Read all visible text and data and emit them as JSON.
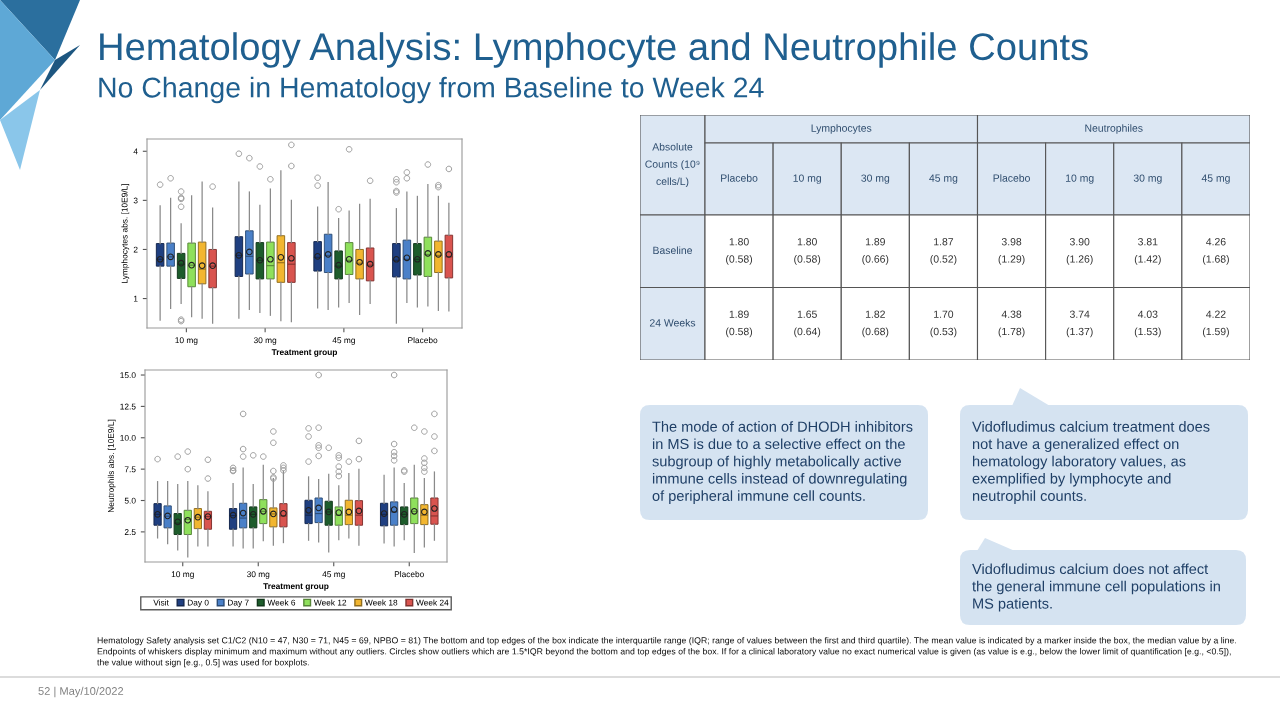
{
  "chart_data": [
    {
      "type": "box",
      "categories": [
        "10 mg",
        "30 mg",
        "45 mg",
        "Placebo"
      ],
      "xlabel": "Treatment group",
      "ylabel": "Lymphocytes abs. [10E9/L]",
      "ylim": [
        0.4,
        4.25
      ],
      "yticks": [
        1,
        2,
        3,
        4
      ],
      "grid": false,
      "legend": false,
      "series": [
        {
          "color": "#1f3f80",
          "boxes": [
            {
              "low": 0.56,
              "q1": 1.66,
              "median": 1.8,
              "q3": 2.12,
              "high": 2.89,
              "mean": 1.8,
              "outliers": [
                3.32
              ]
            },
            {
              "low": 0.6,
              "q1": 1.45,
              "median": 1.88,
              "q3": 2.26,
              "high": 3.37,
              "mean": 1.88,
              "outliers": [
                3.95
              ]
            },
            {
              "low": 0.81,
              "q1": 1.56,
              "median": 1.84,
              "q3": 2.16,
              "high": 2.86,
              "mean": 1.86,
              "outliers": [
                3.46,
                3.3
              ]
            },
            {
              "low": 0.5,
              "q1": 1.44,
              "median": 1.78,
              "q3": 2.12,
              "high": 2.83,
              "mean": 1.8,
              "outliers": [
                3.43,
                3.37,
                3.19,
                3.16
              ]
            }
          ]
        },
        {
          "color": "#4a80c8",
          "boxes": [
            {
              "low": 0.8,
              "q1": 1.66,
              "median": 1.85,
              "q3": 2.13,
              "high": 3.04,
              "mean": 1.85,
              "outliers": [
                3.45
              ]
            },
            {
              "low": 0.78,
              "q1": 1.5,
              "median": 1.86,
              "q3": 2.38,
              "high": 3.17,
              "mean": 1.95,
              "outliers": [
                3.86
              ]
            },
            {
              "low": 0.78,
              "q1": 1.53,
              "median": 1.88,
              "q3": 2.31,
              "high": 3.36,
              "mean": 1.9
            },
            {
              "low": 0.92,
              "q1": 1.4,
              "median": 1.8,
              "q3": 2.19,
              "high": 3.17,
              "mean": 1.83,
              "outliers": [
                3.57,
                3.45
              ]
            }
          ]
        },
        {
          "color": "#1d5c2b",
          "boxes": [
            {
              "low": 0.9,
              "q1": 1.41,
              "median": 1.7,
              "q3": 1.92,
              "high": 2.52,
              "mean": 1.72,
              "outliers": [
                3.18,
                3.05,
                3.03,
                2.87,
                0.57,
                0.54
              ]
            },
            {
              "low": 0.72,
              "q1": 1.4,
              "median": 1.78,
              "q3": 2.14,
              "high": 2.9,
              "mean": 1.78,
              "outliers": [
                3.69
              ]
            },
            {
              "low": 0.83,
              "q1": 1.4,
              "median": 1.66,
              "q3": 1.97,
              "high": 2.63,
              "mean": 1.68,
              "outliers": [
                2.82
              ]
            },
            {
              "low": 0.83,
              "q1": 1.48,
              "median": 1.8,
              "q3": 2.12,
              "high": 3.08,
              "mean": 1.8
            }
          ]
        },
        {
          "color": "#8fe05c",
          "boxes": [
            {
              "low": 0.63,
              "q1": 1.24,
              "median": 1.68,
              "q3": 2.13,
              "high": 3.09,
              "mean": 1.68
            },
            {
              "low": 0.66,
              "q1": 1.4,
              "median": 1.67,
              "q3": 2.15,
              "high": 3.23,
              "mean": 1.8,
              "outliers": [
                3.43
              ]
            },
            {
              "low": 0.92,
              "q1": 1.49,
              "median": 1.78,
              "q3": 2.14,
              "high": 2.78,
              "mean": 1.8,
              "outliers": [
                4.04
              ]
            },
            {
              "low": 0.85,
              "q1": 1.45,
              "median": 1.9,
              "q3": 2.25,
              "high": 3.32,
              "mean": 1.92,
              "outliers": [
                3.73
              ]
            }
          ]
        },
        {
          "color": "#f2b630",
          "boxes": [
            {
              "low": 0.6,
              "q1": 1.3,
              "median": 1.6,
              "q3": 2.15,
              "high": 3.37,
              "mean": 1.67
            },
            {
              "low": 0.55,
              "q1": 1.33,
              "median": 1.73,
              "q3": 2.28,
              "high": 3.6,
              "mean": 1.84
            },
            {
              "low": 0.68,
              "q1": 1.4,
              "median": 1.72,
              "q3": 2.0,
              "high": 2.92,
              "mean": 1.74
            },
            {
              "low": 0.76,
              "q1": 1.53,
              "median": 1.88,
              "q3": 2.17,
              "high": 3.08,
              "mean": 1.9,
              "outliers": [
                3.31,
                3.27
              ]
            }
          ]
        },
        {
          "color": "#d9544f",
          "boxes": [
            {
              "low": 0.5,
              "q1": 1.22,
              "median": 1.66,
              "q3": 2.0,
              "high": 2.84,
              "mean": 1.67,
              "outliers": [
                3.28
              ]
            },
            {
              "low": 0.53,
              "q1": 1.33,
              "median": 1.7,
              "q3": 2.14,
              "high": 3.0,
              "mean": 1.82,
              "outliers": [
                4.13,
                3.7
              ]
            },
            {
              "low": 0.9,
              "q1": 1.36,
              "median": 1.68,
              "q3": 2.03,
              "high": 3.02,
              "mean": 1.7,
              "outliers": [
                3.4
              ]
            },
            {
              "low": 0.75,
              "q1": 1.42,
              "median": 1.85,
              "q3": 2.29,
              "high": 2.94,
              "mean": 1.9,
              "outliers": [
                3.64
              ]
            }
          ]
        }
      ]
    },
    {
      "type": "box",
      "categories": [
        "10 mg",
        "30 mg",
        "45 mg",
        "Placebo"
      ],
      "xlabel": "Treatment group",
      "ylabel": "Neutrophils abs. [10E9/L]",
      "ylim": [
        0.1,
        15.4
      ],
      "yticks": [
        {
          "value": 2.5,
          "label": "2.5"
        },
        {
          "value": 5,
          "label": "5.0"
        },
        {
          "value": 7.5,
          "label": "7.5"
        },
        {
          "value": 10,
          "label": "10.0"
        },
        {
          "value": 12.5,
          "label": "12.5"
        },
        {
          "value": 15,
          "label": "15.0"
        }
      ],
      "grid": false,
      "legend": "bottom",
      "legend_title": "Visit",
      "series": [
        {
          "name": "Day 0",
          "color": "#1f3f80",
          "boxes": [
            {
              "low": 2.02,
              "q1": 3.03,
              "median": 3.9,
              "q3": 4.75,
              "high": 6.5,
              "mean": 3.9,
              "outliers": [
                8.3
              ]
            },
            {
              "low": 1.39,
              "q1": 2.71,
              "median": 3.8,
              "q3": 4.36,
              "high": 6.35,
              "mean": 3.83,
              "outliers": [
                7.6,
                7.4,
                7.35
              ]
            },
            {
              "low": 1.84,
              "q1": 3.16,
              "median": 3.83,
              "q3": 5.02,
              "high": 6.88,
              "mean": 4.22,
              "outliers": [
                10.75,
                10.1,
                8.1
              ]
            },
            {
              "low": 1.62,
              "q1": 2.98,
              "median": 3.9,
              "q3": 4.78,
              "high": 7.01,
              "mean": 3.96
            }
          ]
        },
        {
          "name": "Day 7",
          "color": "#4a80c8",
          "boxes": [
            {
              "low": 1.57,
              "q1": 2.82,
              "median": 3.75,
              "q3": 4.57,
              "high": 6.5,
              "mean": 3.77
            },
            {
              "low": 1.23,
              "q1": 2.82,
              "median": 3.6,
              "q3": 4.78,
              "high": 7.59,
              "mean": 4.0,
              "outliers": [
                11.9,
                9.1,
                8.5
              ]
            },
            {
              "low": 1.7,
              "q1": 3.24,
              "median": 3.96,
              "q3": 5.2,
              "high": 6.66,
              "mean": 4.41,
              "outliers": [
                15.0,
                10.8,
                9.4,
                9.2,
                8.55
              ]
            },
            {
              "low": 1.39,
              "q1": 3.03,
              "median": 4.09,
              "q3": 4.89,
              "high": 7.59,
              "mean": 4.28,
              "outliers": [
                15.0,
                9.5,
                8.85,
                8.55,
                8.2
              ]
            }
          ]
        },
        {
          "name": "Week 6",
          "color": "#1d5c2b",
          "boxes": [
            {
              "low": 1.07,
              "q1": 2.29,
              "median": 3.2,
              "q3": 3.96,
              "high": 6.27,
              "mean": 3.3,
              "outliers": [
                8.5
              ]
            },
            {
              "low": 1.23,
              "q1": 2.82,
              "median": 3.9,
              "q3": 4.49,
              "high": 6.27,
              "mean": 3.9,
              "outliers": [
                8.6
              ]
            },
            {
              "low": 0.91,
              "q1": 3.03,
              "median": 4.09,
              "q3": 4.94,
              "high": 7.09,
              "mean": 4.09,
              "outliers": [
                9.2
              ]
            },
            {
              "low": 1.89,
              "q1": 3.08,
              "median": 3.9,
              "q3": 4.49,
              "high": 6.35,
              "mean": 3.9,
              "outliers": [
                7.4,
                7.3
              ]
            }
          ]
        },
        {
          "name": "Week 12",
          "color": "#8fe05c",
          "boxes": [
            {
              "low": 0.5,
              "q1": 2.29,
              "median": 3.5,
              "q3": 4.22,
              "high": 6.5,
              "mean": 3.43,
              "outliers": [
                8.9,
                7.5
              ]
            },
            {
              "low": 1.81,
              "q1": 3.16,
              "median": 4.14,
              "q3": 5.07,
              "high": 7.8,
              "mean": 4.14,
              "outliers": [
                8.5
              ]
            },
            {
              "low": 1.89,
              "q1": 3.03,
              "median": 3.83,
              "q3": 4.49,
              "high": 6.16,
              "mean": 4.04,
              "outliers": [
                8.6,
                8.4,
                7.7,
                7.3,
                6.95
              ]
            },
            {
              "low": 0.86,
              "q1": 3.16,
              "median": 4.14,
              "q3": 5.2,
              "high": 7.8,
              "mean": 4.14,
              "outliers": [
                10.8
              ]
            }
          ]
        },
        {
          "name": "Week 18",
          "color": "#f2b630",
          "boxes": [
            {
              "low": 1.39,
              "q1": 2.76,
              "median": 3.67,
              "q3": 4.36,
              "high": 6.16,
              "mean": 3.67
            },
            {
              "low": 1.44,
              "q1": 2.9,
              "median": 3.93,
              "q3": 4.41,
              "high": 6.74,
              "mean": 3.93,
              "outliers": [
                10.5,
                9.6,
                7.35,
                6.85,
                6.75
              ]
            },
            {
              "low": 2.02,
              "q1": 3.08,
              "median": 3.83,
              "q3": 5.02,
              "high": 7.14,
              "mean": 4.09,
              "outliers": [
                8.1
              ]
            },
            {
              "low": 1.31,
              "q1": 3.08,
              "median": 3.83,
              "q3": 4.67,
              "high": 6.74,
              "mean": 4.09,
              "outliers": [
                10.5,
                8.35,
                8.0,
                7.6,
                7.3
              ]
            }
          ]
        },
        {
          "name": "Week 24",
          "color": "#d9544f",
          "boxes": [
            {
              "low": 1.39,
              "q1": 2.71,
              "median": 3.72,
              "q3": 4.14,
              "high": 5.68,
              "mean": 3.72,
              "outliers": [
                8.25,
                6.75
              ]
            },
            {
              "low": 1.65,
              "q1": 2.9,
              "median": 3.77,
              "q3": 4.75,
              "high": 7.33,
              "mean": 3.98,
              "outliers": [
                7.8,
                7.6,
                7.4
              ]
            },
            {
              "low": 1.44,
              "q1": 3.03,
              "median": 3.83,
              "q3": 4.99,
              "high": 7.49,
              "mean": 4.17,
              "outliers": [
                9.75,
                8.3
              ]
            },
            {
              "low": 1.84,
              "q1": 3.11,
              "median": 3.77,
              "q3": 5.2,
              "high": 7.27,
              "mean": 4.36,
              "outliers": [
                11.9,
                10.1,
                8.95
              ]
            }
          ]
        }
      ]
    },
    {
      "type": "other",
      "categories": [
        "Placebo",
        "10 mg",
        "30 mg",
        "45 mg",
        "Placebo",
        "10 mg",
        "30 mg",
        "45 mg"
      ],
      "y_categories": [
        "Baseline",
        "24 Weeks"
      ],
      "cell_labels": [
        [
          "1.80\n(0.58)",
          "1.80\n(0.58)",
          "1.89\n(0.66)",
          "1.87\n(0.52)",
          "3.98\n(1.29)",
          "3.90\n(1.26)",
          "3.81\n(1.42)",
          "4.26\n(1.68)"
        ],
        [
          "1.89\n(0.58)",
          "1.65\n(0.64)",
          "1.82\n(0.68)",
          "1.70\n(0.53)",
          "4.38\n(1.78)",
          "3.74\n(1.37)",
          "4.03\n(1.53)",
          "4.22\n(1.59)"
        ]
      ],
      "annotations": [
        "Absolute Counts (10⁹ cells/L)",
        "Lymphocytes",
        "Neutrophiles"
      ]
    },
    {
      "type": "other",
      "title": "Hematology Analysis: Lymphocyte and Neutrophile Counts",
      "subtitle": "No Change in Hematology from Baseline to Week 24",
      "annotations": [
        "The mode of action of DHODH inhibitors in MS is due to a selective effect on the subgroup of highly metabolically active immune cells instead of downregulating of peripheral immune cell counts.",
        "Vidofludimus calcium treatment does not have a generalized effect on hematology laboratory values, as exemplified by lymphocyte and neutrophil counts.",
        "Vidofludimus calcium does not affect the general immune cell populations in MS patients.",
        "Hematology Safety analysis set C1/C2 (N10 = 47, N30 = 71, N45 = 69, NPBO = 81) The bottom and top edges of the box indicate the interquartile range (IQR; range of values between the first and third quartile). The mean value is indicated by a marker inside the box, the median value by a line. Endpoints of whiskers display minimum and maximum without any outliers. Circles show outliers which are 1.5*IQR beyond the bottom and top edges of the box. If for a clinical laboratory value no exact numerical value is given (as value is e.g., below the lower limit of quantification [e.g., <0.5]), the value without sign [e.g., 0.5] was used for boxplots.",
        "52 | May/10/2022"
      ]
    }
  ]
}
